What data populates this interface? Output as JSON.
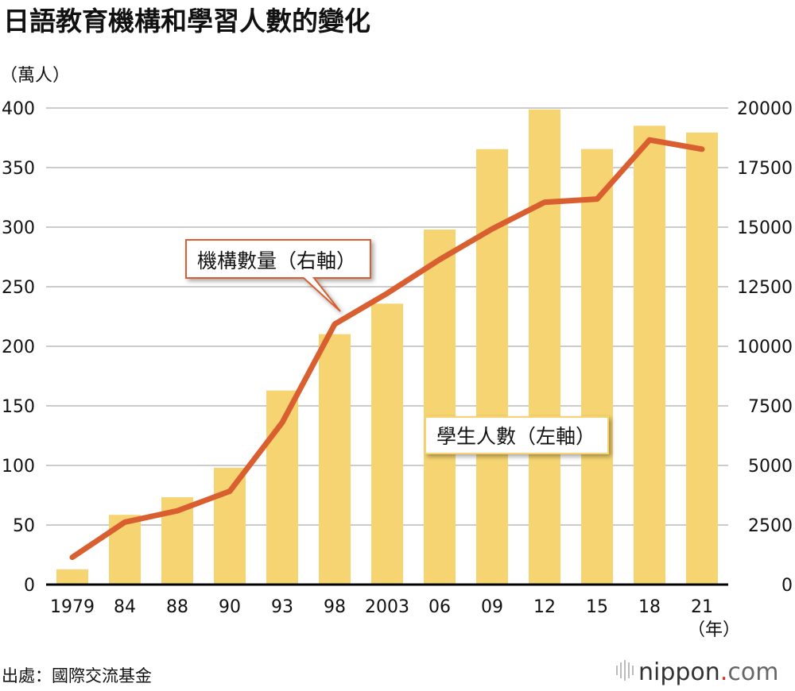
{
  "title": "日語教育機構和學習人數的變化",
  "source": "出處：國際交流基金",
  "logo": "nippon.com",
  "chart_data": {
    "type": "bar+line",
    "title": "日語教育機構和學習人數的變化",
    "left_unit": "（萬人）",
    "x_unit": "（年）",
    "categories": [
      "1979",
      "84",
      "88",
      "90",
      "93",
      "98",
      "2003",
      "06",
      "09",
      "12",
      "15",
      "18",
      "21"
    ],
    "left_axis": {
      "min": 0,
      "max": 400,
      "ticks": [
        0,
        50,
        100,
        150,
        200,
        250,
        300,
        350,
        400
      ]
    },
    "right_axis": {
      "min": 0,
      "max": 20000,
      "ticks": [
        0,
        2500,
        5000,
        7500,
        10000,
        12500,
        15000,
        17500,
        20000
      ]
    },
    "grid": true,
    "series": [
      {
        "name": "學生人數（左軸）",
        "type": "bar",
        "axis": "left",
        "color": "#F6D471",
        "values": [
          12.8,
          58.5,
          73.3,
          98.1,
          162.9,
          210.2,
          235.8,
          298.0,
          365.5,
          398.8,
          365.6,
          385.1,
          379.4
        ]
      },
      {
        "name": "機構數量（右軸）",
        "type": "line",
        "axis": "right",
        "color": "#D95F31",
        "values": [
          1145,
          2620,
          3096,
          3917,
          6800,
          10930,
          12222,
          13639,
          14925,
          16046,
          16179,
          18661,
          18272
        ]
      }
    ]
  }
}
